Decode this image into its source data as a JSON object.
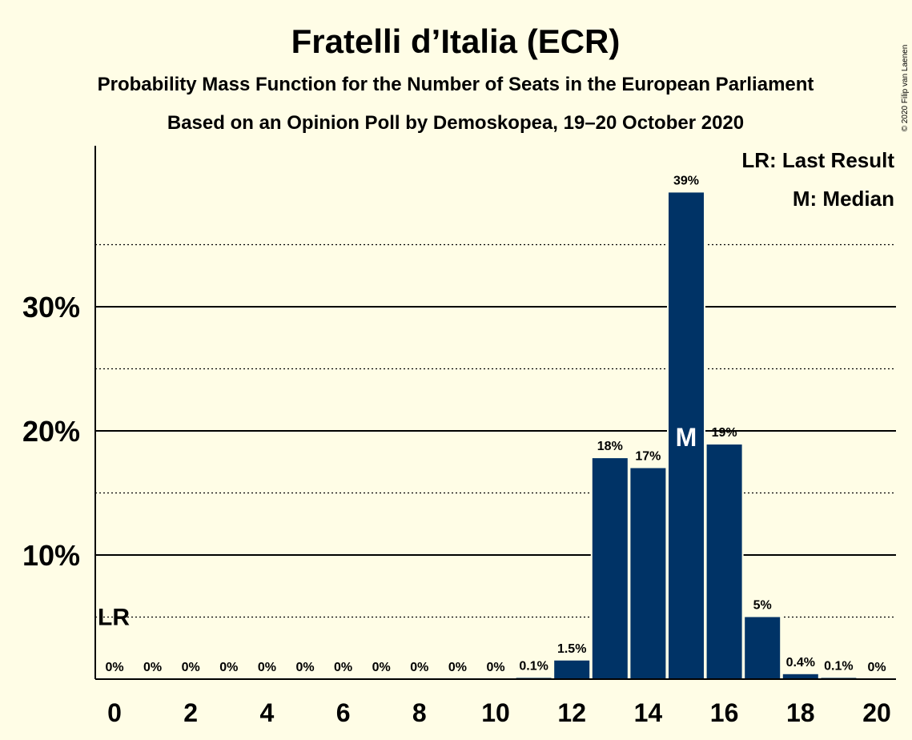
{
  "title": "Fratelli d’Italia (ECR)",
  "subtitle1": "Probability Mass Function for the Number of Seats in the European Parliament",
  "subtitle2": "Based on an Opinion Poll by Demoskopea, 19–20 October 2020",
  "copyright": "© 2020 Filip van Laenen",
  "legend": {
    "lr": "LR: Last Result",
    "median": "M: Median"
  },
  "colors": {
    "background": "#fffde6",
    "bar": "#003366",
    "axis": "#000000"
  },
  "chart_data": {
    "type": "bar",
    "x": [
      0,
      1,
      2,
      3,
      4,
      5,
      6,
      7,
      8,
      9,
      10,
      11,
      12,
      13,
      14,
      15,
      16,
      17,
      18,
      19,
      20
    ],
    "values": [
      0,
      0,
      0,
      0,
      0,
      0,
      0,
      0,
      0,
      0,
      0,
      0.1,
      1.5,
      17.8,
      17.0,
      39.2,
      18.9,
      5.0,
      0.4,
      0.1,
      0
    ],
    "data_labels": [
      "0%",
      "0%",
      "0%",
      "0%",
      "0%",
      "0%",
      "0%",
      "0%",
      "0%",
      "0%",
      "0%",
      "0.1%",
      "1.5%",
      "18%",
      "17%",
      "39%",
      "19%",
      "5%",
      "0.4%",
      "0.1%",
      "0%"
    ],
    "x_ticks": [
      0,
      2,
      4,
      6,
      8,
      10,
      12,
      14,
      16,
      18,
      20
    ],
    "y_ticks": [
      {
        "value": 10,
        "label": "10%"
      },
      {
        "value": 20,
        "label": "20%"
      },
      {
        "value": 30,
        "label": "30%"
      }
    ],
    "minor_gridlines": [
      5,
      15,
      25,
      35
    ],
    "ylim": [
      0,
      43
    ],
    "xlim": [
      -0.5,
      20.5
    ],
    "median": 15,
    "median_label": "M",
    "last_result": 0,
    "last_result_label": "LR",
    "last_result_level": 5,
    "grid": true,
    "legend_position": "top-right"
  }
}
